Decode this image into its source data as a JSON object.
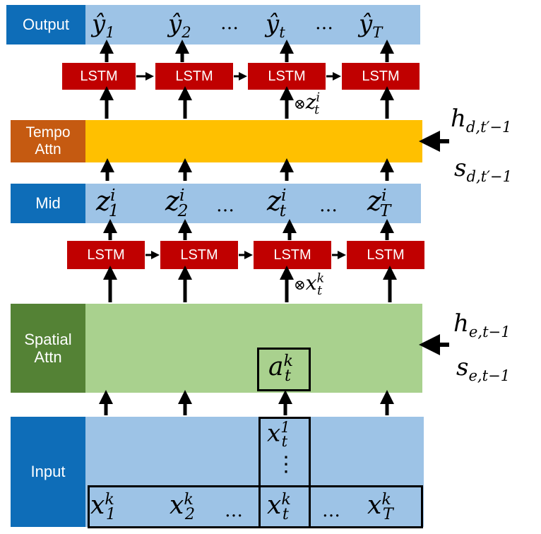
{
  "colors": {
    "blue_label": "#0e6db8",
    "light_blue": "#9dc3e6",
    "lstm_red": "#c00000",
    "tempo_orange": "#c55a11",
    "tempo_yellow": "#ffc000",
    "spatial_green_dark": "#548235",
    "spatial_green_light": "#a9d18e"
  },
  "labels": {
    "output": "Output",
    "tempo_line1": "Tempo",
    "tempo_line2": "Attn",
    "mid": "Mid",
    "spatial_line1": "Spatial",
    "spatial_line2": "Attn",
    "input": "Input"
  },
  "lstm_label": "LSTM",
  "math": {
    "y_hat": "ŷ",
    "z": "z",
    "x": "x",
    "a": "a",
    "h": "h",
    "s": "s",
    "sub_1": "1",
    "sub_2": "2",
    "sub_t": "t",
    "sub_T": "T",
    "sup_i": "i",
    "sup_k": "k",
    "sup_1": "1",
    "otimes": "⊗",
    "ellipsis": "…",
    "vdots": "⋮",
    "h_dec_sub": "d,t′−1",
    "s_dec_sub": "d,t′−1",
    "h_enc_sub": "e,t−1",
    "s_enc_sub": "e,t−1"
  }
}
